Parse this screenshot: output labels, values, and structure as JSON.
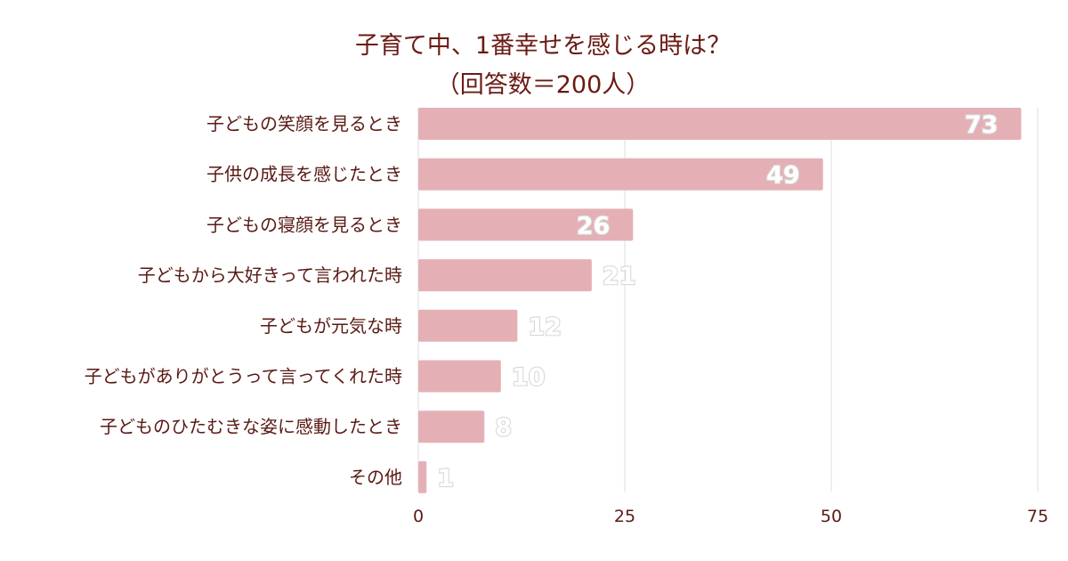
{
  "chart_data": {
    "type": "bar",
    "orientation": "horizontal",
    "title": "子育て中、1番幸せを感じる時は？",
    "subtitle": "（回答数＝200人）",
    "categories": [
      "子どもの笑顔を見るとき",
      "子供の成長を感じたとき",
      "子どもの寝顔を見るとき",
      "子どもから大好きって言われた時",
      "子どもが元気な時",
      "子どもがありがとうって言ってくれた時",
      "子どものひたむきな姿に感動したとき",
      "その他"
    ],
    "values": [
      73,
      49,
      26,
      21,
      12,
      10,
      8,
      1
    ],
    "xlim": [
      0,
      75
    ],
    "xticks": [
      "0",
      "25",
      "50",
      "75"
    ],
    "grid": true,
    "bar_color": "#e4b0b6"
  }
}
